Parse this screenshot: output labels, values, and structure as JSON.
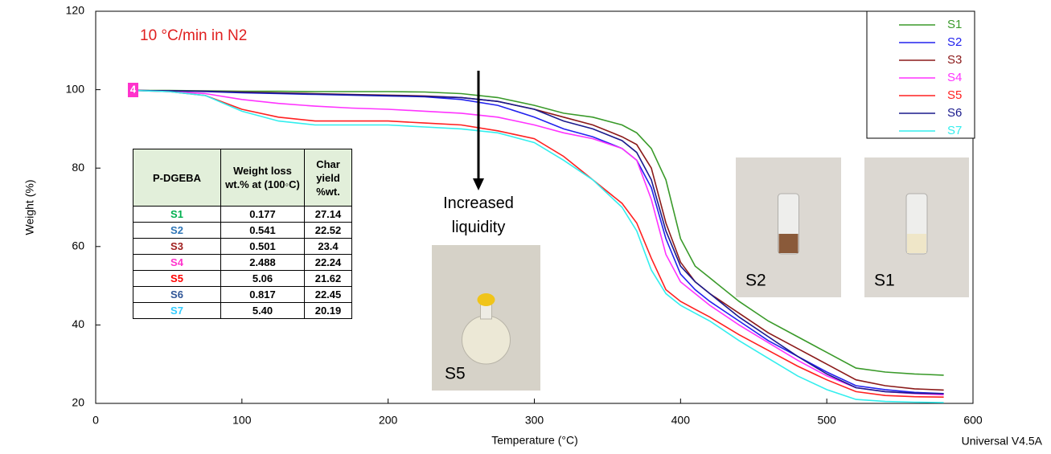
{
  "chart_data": {
    "type": "line",
    "xlabel": "Temperature (°C)",
    "ylabel": "Weight (%)",
    "xlim": [
      0,
      600
    ],
    "ylim": [
      20,
      120
    ],
    "xticks": [
      0,
      100,
      200,
      300,
      400,
      500,
      600
    ],
    "yticks": [
      20,
      40,
      60,
      80,
      100,
      120
    ],
    "x": [
      25,
      50,
      75,
      100,
      125,
      150,
      175,
      200,
      225,
      250,
      275,
      300,
      320,
      340,
      360,
      370,
      380,
      390,
      400,
      410,
      420,
      440,
      460,
      480,
      500,
      520,
      540,
      560,
      580
    ],
    "series": [
      {
        "name": "S1",
        "color": "#3a9a2a",
        "values": [
          99.8,
          99.8,
          99.7,
          99.6,
          99.6,
          99.5,
          99.5,
          99.5,
          99.4,
          99,
          98,
          96,
          94,
          93,
          91,
          89,
          85,
          77,
          62,
          55,
          52,
          46,
          41,
          37,
          33,
          29,
          28,
          27.5,
          27.2
        ]
      },
      {
        "name": "S2",
        "color": "#2222ee",
        "values": [
          99.8,
          99.7,
          99.5,
          99.2,
          99,
          98.8,
          98.6,
          98.4,
          98.2,
          97.5,
          96,
          93,
          90,
          88,
          85,
          82,
          75,
          62,
          53,
          49,
          46,
          41,
          36,
          32,
          28,
          24.5,
          23.5,
          22.8,
          22.5
        ]
      },
      {
        "name": "S3",
        "color": "#8b1a1a",
        "values": [
          99.8,
          99.7,
          99.6,
          99.4,
          99.2,
          99,
          98.8,
          98.6,
          98.4,
          98,
          97,
          95,
          93,
          91,
          88,
          86,
          80,
          66,
          56,
          51,
          48,
          43,
          38,
          34,
          30,
          26,
          24.5,
          23.7,
          23.4
        ]
      },
      {
        "name": "S4",
        "color": "#ff33ff",
        "values": [
          99.8,
          99.5,
          99,
          97.5,
          96.5,
          95.8,
          95.3,
          95,
          94.5,
          94,
          93,
          91,
          89,
          87.5,
          85,
          82,
          72,
          58,
          51,
          48,
          45,
          40,
          35.5,
          31,
          27,
          24,
          23,
          22.5,
          22.2
        ]
      },
      {
        "name": "S5",
        "color": "#ff2020",
        "values": [
          99.8,
          99.5,
          98.5,
          95,
          93,
          92,
          92,
          92,
          91.5,
          91,
          89.5,
          87.5,
          83,
          77,
          71,
          66,
          57,
          49,
          46,
          44,
          42,
          37.5,
          33.5,
          29.5,
          26,
          23,
          22,
          21.7,
          21.6
        ]
      },
      {
        "name": "S6",
        "color": "#1a1a8c",
        "values": [
          99.8,
          99.7,
          99.6,
          99.3,
          99.1,
          98.9,
          98.7,
          98.5,
          98.3,
          98,
          97,
          95,
          92,
          90,
          87,
          84,
          77,
          64,
          55,
          51,
          48,
          42,
          37,
          32,
          27.5,
          24,
          23,
          22.6,
          22.45
        ]
      },
      {
        "name": "S7",
        "color": "#33eeee",
        "values": [
          99.8,
          99.5,
          98.5,
          94.5,
          92,
          91,
          91,
          91,
          90.5,
          90,
          89,
          86.5,
          82,
          77,
          70,
          64,
          54,
          48,
          45,
          43,
          41,
          36,
          31.5,
          27,
          23.5,
          21,
          20.5,
          20.3,
          20.2
        ]
      }
    ],
    "annotations": [
      "10 °C/min in N2",
      "Increased liquidity",
      "Universal V4.5A",
      "4"
    ]
  },
  "table": {
    "header": [
      "P-DGEBA",
      "Weight loss wt.% at (100◦C)",
      "Char yield %wt."
    ],
    "row_colors": [
      "#00b050",
      "#2e75b6",
      "#a02020",
      "#ff33cc",
      "#ff0000",
      "#2f5597",
      "#33ccff"
    ],
    "rows": [
      [
        "S1",
        "0.177",
        "27.14"
      ],
      [
        "S2",
        "0.541",
        "22.52"
      ],
      [
        "S3",
        "0.501",
        "23.4"
      ],
      [
        "S4",
        "2.488",
        "22.24"
      ],
      [
        "S5",
        "5.06",
        "21.62"
      ],
      [
        "S6",
        "0.817",
        "22.45"
      ],
      [
        "S7",
        "5.40",
        "20.19"
      ]
    ]
  },
  "photos": [
    "S5",
    "S2",
    "S1"
  ]
}
